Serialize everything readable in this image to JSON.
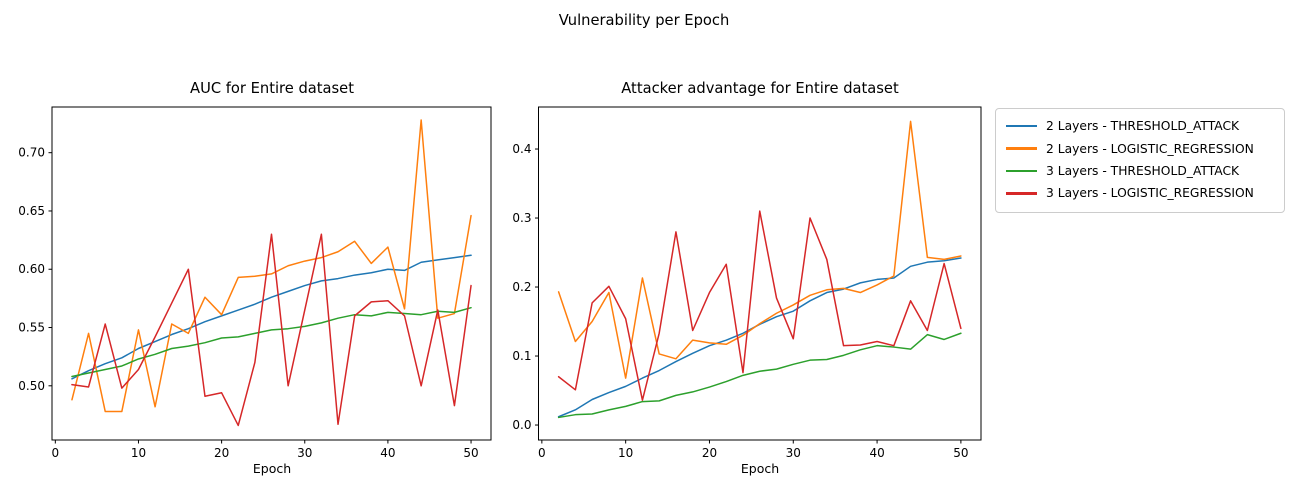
{
  "figure": {
    "title": "Vulnerability per Epoch",
    "background": "#ffffff"
  },
  "colors": {
    "blue": "#1f77b4",
    "orange": "#ff7f0e",
    "green": "#2ca02c",
    "red": "#d62728",
    "axis": "#000000",
    "legend_border": "#cccccc"
  },
  "legend": {
    "position": "outside upper right",
    "items": [
      {
        "label": "2 Layers - THRESHOLD_ATTACK",
        "color": "#1f77b4"
      },
      {
        "label": "2 Layers - LOGISTIC_REGRESSION",
        "color": "#ff7f0e"
      },
      {
        "label": "3 Layers - THRESHOLD_ATTACK",
        "color": "#2ca02c"
      },
      {
        "label": "3 Layers - LOGISTIC_REGRESSION",
        "color": "#d62728"
      }
    ]
  },
  "chart_data": [
    {
      "type": "line",
      "id": "auc-chart",
      "title": "AUC for Entire dataset",
      "xlabel": "Epoch",
      "ylabel": "",
      "grid": false,
      "x": [
        2,
        4,
        6,
        8,
        10,
        12,
        14,
        16,
        18,
        20,
        22,
        24,
        26,
        28,
        30,
        32,
        34,
        36,
        38,
        40,
        42,
        44,
        46,
        48,
        50
      ],
      "xlim": [
        -0.4,
        52.4
      ],
      "ylim": [
        0.4535,
        0.7392
      ],
      "xticks": [
        0,
        10,
        20,
        30,
        40,
        50
      ],
      "xtick_labels": [
        "0",
        "10",
        "20",
        "30",
        "40",
        "50"
      ],
      "yticks": [
        0.5,
        0.55,
        0.6,
        0.65,
        0.7
      ],
      "ytick_labels": [
        "0.50",
        "0.55",
        "0.60",
        "0.65",
        "0.70"
      ],
      "series": [
        {
          "name": "2 Layers - THRESHOLD_ATTACK",
          "color": "#1f77b4",
          "values": [
            0.506,
            0.513,
            0.519,
            0.524,
            0.532,
            0.538,
            0.544,
            0.549,
            0.555,
            0.56,
            0.565,
            0.57,
            0.576,
            0.581,
            0.586,
            0.59,
            0.592,
            0.595,
            0.597,
            0.6,
            0.599,
            0.606,
            0.608,
            0.61,
            0.612
          ]
        },
        {
          "name": "2 Layers - LOGISTIC_REGRESSION",
          "color": "#ff7f0e",
          "values": [
            0.488,
            0.545,
            0.478,
            0.478,
            0.548,
            0.482,
            0.553,
            0.545,
            0.576,
            0.561,
            0.593,
            0.594,
            0.596,
            0.603,
            0.607,
            0.61,
            0.615,
            0.624,
            0.605,
            0.619,
            0.566,
            0.728,
            0.558,
            0.562,
            0.646
          ]
        },
        {
          "name": "3 Layers - THRESHOLD_ATTACK",
          "color": "#2ca02c",
          "values": [
            0.508,
            0.511,
            0.514,
            0.517,
            0.523,
            0.527,
            0.532,
            0.534,
            0.537,
            0.541,
            0.542,
            0.545,
            0.548,
            0.549,
            0.551,
            0.554,
            0.558,
            0.561,
            0.56,
            0.563,
            0.562,
            0.561,
            0.564,
            0.563,
            0.567
          ]
        },
        {
          "name": "3 Layers - LOGISTIC_REGRESSION",
          "color": "#d62728",
          "values": [
            0.501,
            0.499,
            0.553,
            0.498,
            0.514,
            0.542,
            0.571,
            0.6,
            0.491,
            0.494,
            0.466,
            0.52,
            0.63,
            0.5,
            0.565,
            0.63,
            0.467,
            0.56,
            0.572,
            0.573,
            0.56,
            0.5,
            0.565,
            0.483,
            0.586
          ]
        }
      ]
    },
    {
      "type": "line",
      "id": "advantage-chart",
      "title": "Attacker advantage for Entire dataset",
      "xlabel": "Epoch",
      "ylabel": "",
      "grid": false,
      "x": [
        2,
        4,
        6,
        8,
        10,
        12,
        14,
        16,
        18,
        20,
        22,
        24,
        26,
        28,
        30,
        32,
        34,
        36,
        38,
        40,
        42,
        44,
        46,
        48,
        50
      ],
      "xlim": [
        -0.4,
        52.4
      ],
      "ylim": [
        -0.0217,
        0.4609
      ],
      "xticks": [
        0,
        10,
        20,
        30,
        40,
        50
      ],
      "xtick_labels": [
        "0",
        "10",
        "20",
        "30",
        "40",
        "50"
      ],
      "yticks": [
        0.0,
        0.1,
        0.2,
        0.3,
        0.4
      ],
      "ytick_labels": [
        "0.0",
        "0.1",
        "0.2",
        "0.3",
        "0.4"
      ],
      "series": [
        {
          "name": "2 Layers - THRESHOLD_ATTACK",
          "color": "#1f77b4",
          "values": [
            0.012,
            0.022,
            0.037,
            0.047,
            0.056,
            0.068,
            0.079,
            0.092,
            0.104,
            0.115,
            0.123,
            0.133,
            0.146,
            0.157,
            0.165,
            0.18,
            0.192,
            0.197,
            0.206,
            0.211,
            0.213,
            0.23,
            0.236,
            0.238,
            0.242
          ]
        },
        {
          "name": "2 Layers - LOGISTIC_REGRESSION",
          "color": "#ff7f0e",
          "values": [
            0.193,
            0.121,
            0.15,
            0.192,
            0.068,
            0.213,
            0.103,
            0.096,
            0.123,
            0.119,
            0.117,
            0.13,
            0.147,
            0.162,
            0.174,
            0.188,
            0.196,
            0.198,
            0.192,
            0.203,
            0.216,
            0.44,
            0.243,
            0.24,
            0.245
          ]
        },
        {
          "name": "3 Layers - THRESHOLD_ATTACK",
          "color": "#2ca02c",
          "values": [
            0.011,
            0.015,
            0.016,
            0.022,
            0.027,
            0.034,
            0.035,
            0.043,
            0.048,
            0.055,
            0.063,
            0.072,
            0.078,
            0.081,
            0.088,
            0.094,
            0.095,
            0.101,
            0.109,
            0.115,
            0.113,
            0.11,
            0.131,
            0.124,
            0.133
          ]
        },
        {
          "name": "3 Layers - LOGISTIC_REGRESSION",
          "color": "#d62728",
          "values": [
            0.07,
            0.051,
            0.177,
            0.201,
            0.154,
            0.036,
            0.133,
            0.28,
            0.137,
            0.192,
            0.233,
            0.076,
            0.31,
            0.184,
            0.125,
            0.3,
            0.24,
            0.115,
            0.116,
            0.121,
            0.115,
            0.18,
            0.137,
            0.234,
            0.14
          ]
        }
      ]
    }
  ]
}
